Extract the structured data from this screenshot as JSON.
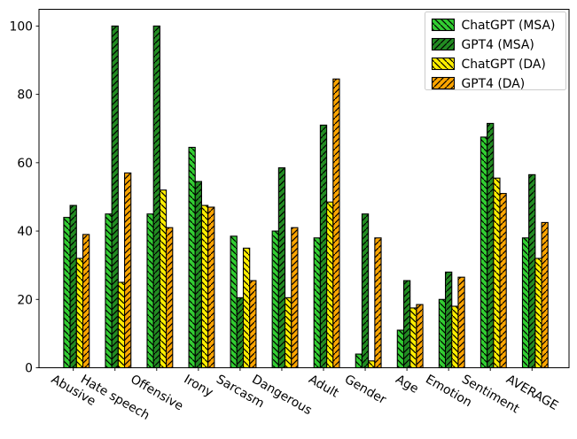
{
  "chart_data": {
    "type": "bar",
    "title": "",
    "xlabel": "",
    "ylabel": "",
    "categories": [
      "Abusive",
      "Hate speech",
      "Offensive",
      "Irony",
      "Sarcasm",
      "Dangerous",
      "Adult",
      "Gender",
      "Age",
      "Emotion",
      "Sentiment",
      "AVERAGE"
    ],
    "series": [
      {
        "name": "ChatGPT (MSA)",
        "color": "#32CD32",
        "hatch": "\\",
        "values": [
          44,
          45,
          45,
          64.5,
          38.5,
          40,
          38,
          4,
          11,
          20,
          67.5,
          38
        ]
      },
      {
        "name": "GPT4 (MSA)",
        "color": "#228B22",
        "hatch": "/",
        "values": [
          47.5,
          100,
          100,
          54.5,
          20.5,
          58.5,
          71,
          45,
          25.5,
          28,
          71.5,
          56.5
        ]
      },
      {
        "name": "ChatGPT (DA)",
        "color": "#FFEE00",
        "hatch": "\\",
        "values": [
          32,
          25,
          52,
          47.5,
          35,
          20.5,
          48.5,
          2,
          17.5,
          18,
          55.5,
          32
        ]
      },
      {
        "name": "GPT4 (DA)",
        "color": "#FFA500",
        "hatch": "/",
        "values": [
          39,
          57,
          41,
          47,
          25.5,
          41,
          84.5,
          38,
          18.5,
          26.5,
          51,
          42.5
        ]
      }
    ],
    "yticks": [
      0,
      20,
      40,
      60,
      80,
      100
    ],
    "ylim": [
      0,
      105
    ],
    "grid": false,
    "legend_position": "upper right",
    "hatch_color": "#000000",
    "edge_color": "#000000",
    "background": "#ffffff"
  }
}
